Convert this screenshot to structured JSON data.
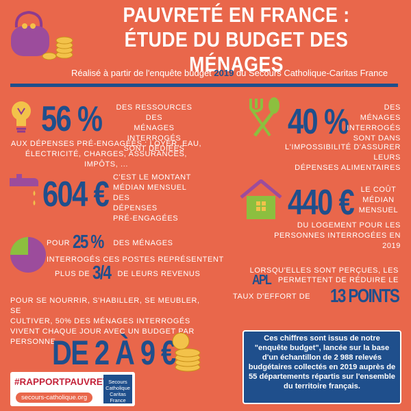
{
  "header": {
    "title_lines": [
      "PAUVRETÉ EN FRANCE :",
      "ÉTUDE DU BUDGET DES MÉNAGES"
    ],
    "subtitle": {
      "before": "Réalisé à partir de l'enquête budget ",
      "year": "2019",
      "after": " du Secours Catholique-Caritas France"
    }
  },
  "stats": [
    {
      "figure": "56 %",
      "side_lines": [
        "DES RESSOURCES DES",
        "MÉNAGES INTERROGÉS",
        "SONT DÉDIÉES"
      ],
      "below_lines": [
        "AUX DÉPENSES PRÉ-ENGAGÉES : LOYER, EAU,",
        "ÉLECTRICITÉ, CHARGES, ASSURANCES, IMPÔTS, ..."
      ]
    },
    {
      "figure": "40 %",
      "side_lines": [
        "DES MÉNAGES",
        "INTERROGÉS",
        "SONT DANS"
      ],
      "below_lines": [
        "L'IMPOSSIBILITÉ D'ASSURER LEURS",
        "DÉPENSES ALIMENTAIRES"
      ]
    },
    {
      "figure": "604 €",
      "side_lines": [
        "C'EST LE MONTANT",
        "MÉDIAN MENSUEL DES",
        "DÉPENSES",
        "PRÉ-ENGAGÉES"
      ]
    },
    {
      "figure": "440 €",
      "side_lines": [
        "LE COÛT",
        "MÉDIAN",
        "MENSUEL"
      ],
      "below_lines": [
        "DU LOGEMENT POUR LES",
        "PERSONNES INTERROGÉES EN 2019"
      ]
    },
    {
      "line1": {
        "before": "POUR",
        "figure": "25 %",
        "after": "DES MÉNAGES"
      },
      "line2": "INTERROGÉS CES POSTES REPRÉSENTENT",
      "line3": {
        "before": "PLUS DE",
        "figure": "3/4",
        "after": "DE LEURS REVENUS"
      }
    },
    {
      "line1": "LORSQU'ELLES SONT PERÇUES, LES",
      "line2": {
        "figure": "APL",
        "after": "PERMETTENT DE RÉDUIRE LE"
      },
      "line3": {
        "before": "TAUX D'EFFORT DE",
        "figure": "13 POINTS"
      }
    },
    {
      "lines": [
        "POUR SE NOURRIR, S'HABILLER, SE MEUBLER, SE",
        "CULTIVER, 50% DES MÉNAGES INTERROGÉS",
        "VIVENT CHAQUE JOUR AVEC UN BUDGET PAR",
        "PERSONNE"
      ],
      "figure": "DE 2 À 9 €"
    }
  ],
  "note": "Ces chiffres sont issus de notre \"enquête budget\", lancée sur la base d'un échantillon de 2 988 relevés budgétaires collectés en 2019 auprès de 55 départements répartis sur l'ensemble du territoire français.",
  "footer": {
    "hashtag": "#RAPPORTPAUVRETÉ",
    "url": "secours-catholique.org",
    "logo_lines": [
      "Secours",
      "Catholique",
      "Caritas France"
    ]
  }
}
